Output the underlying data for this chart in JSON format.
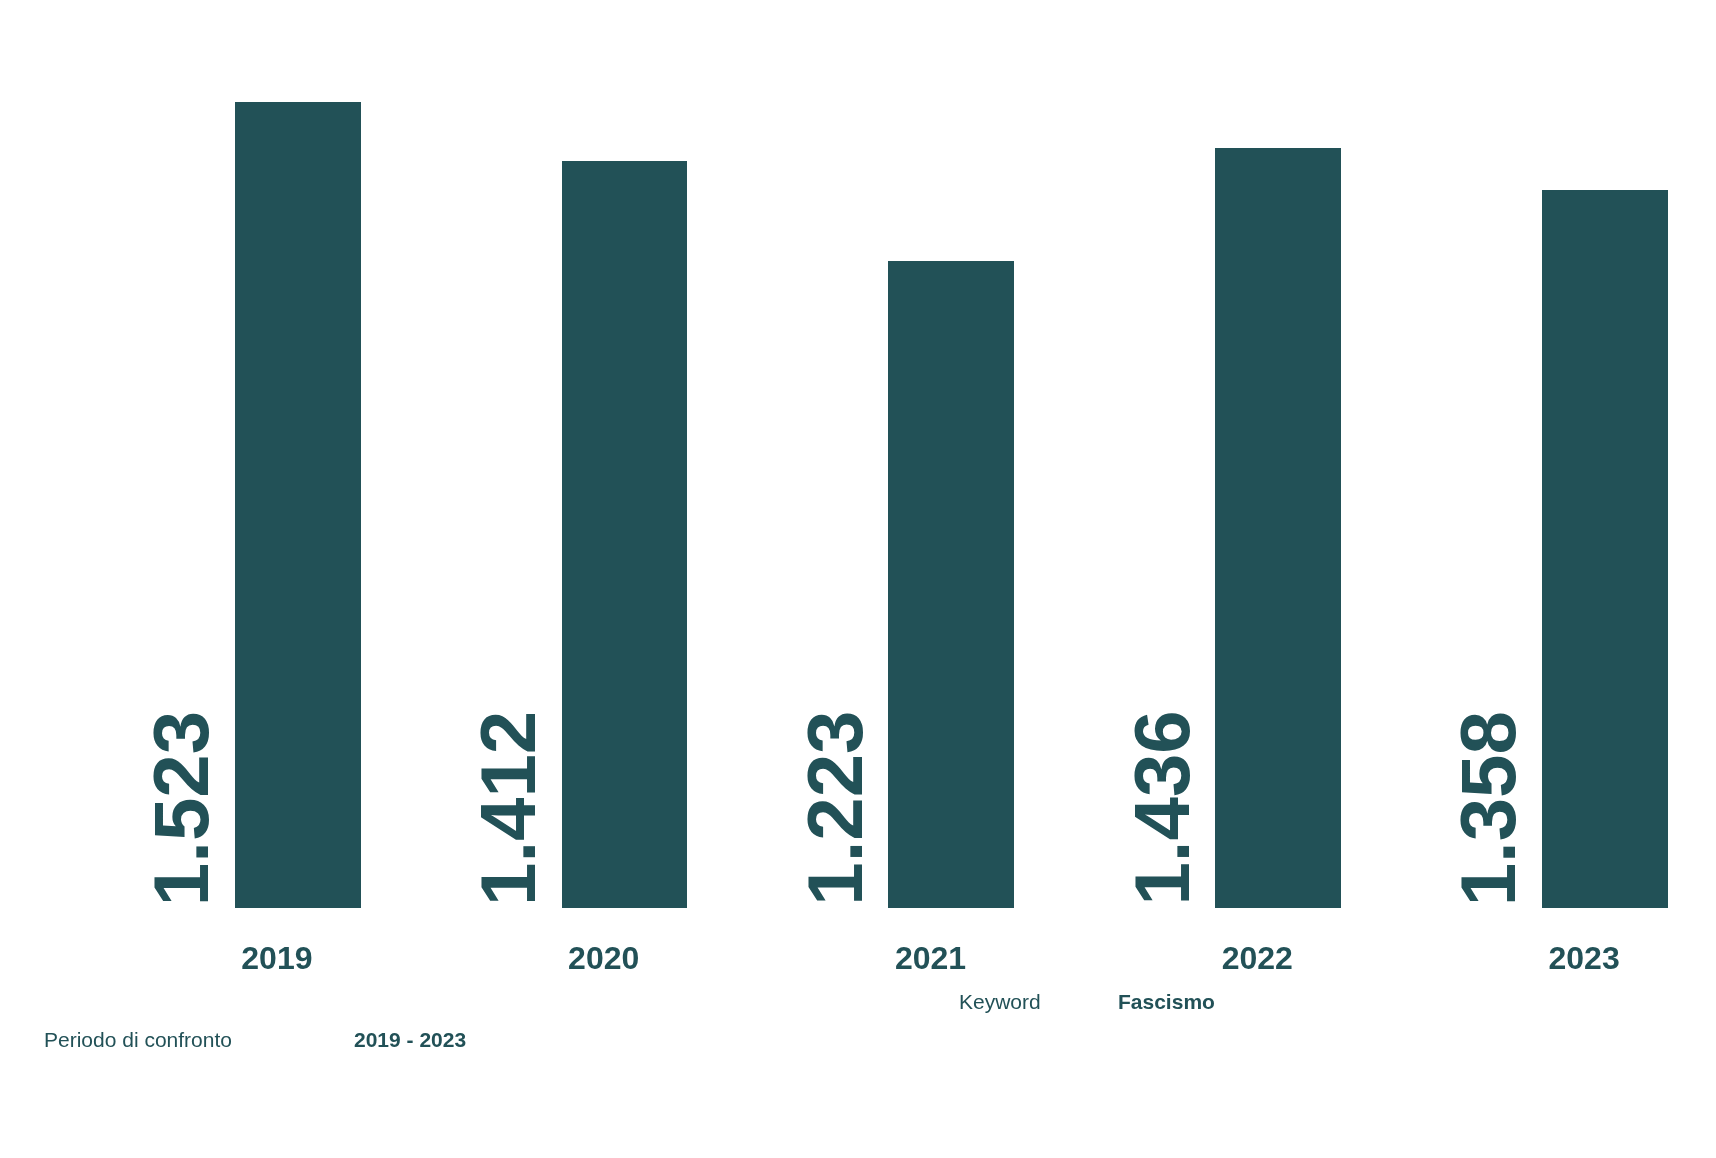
{
  "chart_data": {
    "type": "bar",
    "categories": [
      "2019",
      "2020",
      "2021",
      "2022",
      "2023"
    ],
    "values": [
      1523,
      1412,
      1223,
      1436,
      1358
    ],
    "value_labels": [
      "1.523",
      "1.412",
      "1.223",
      "1.436",
      "1.358"
    ],
    "color": "#225157",
    "annotations": [
      "Periodo di confronto",
      "2019 - 2023",
      "Keyword",
      "Fascismo"
    ]
  }
}
